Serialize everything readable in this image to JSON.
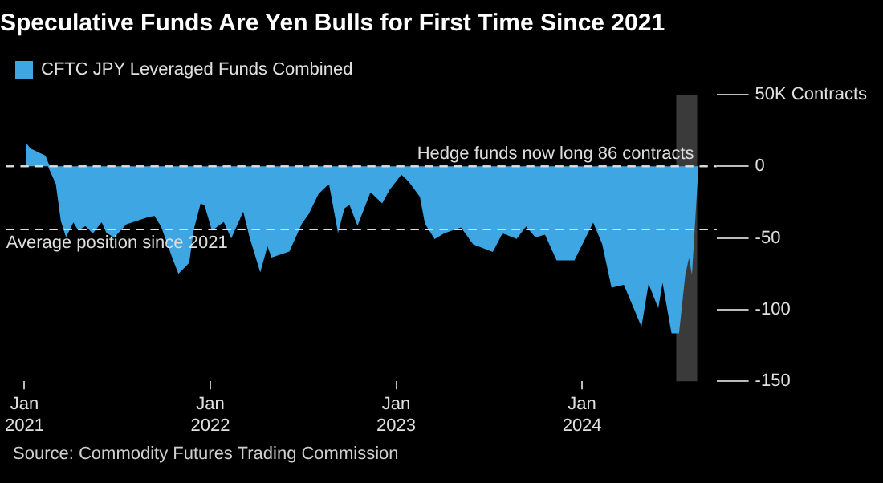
{
  "chart_data": {
    "type": "area",
    "title": "Speculative Funds Are Yen Bulls for First Time Since 2021",
    "x": [
      "2021-01-05",
      "2021-01-12",
      "2021-02-10",
      "2021-02-19",
      "2021-03-05",
      "2021-03-15",
      "2021-03-24",
      "2021-04-07",
      "2021-04-17",
      "2021-05-01",
      "2021-05-15",
      "2021-06-02",
      "2021-06-12",
      "2021-06-26",
      "2021-07-19",
      "2021-08-31",
      "2021-09-14",
      "2021-09-28",
      "2021-10-21",
      "2021-10-31",
      "2021-11-19",
      "2021-11-28",
      "2021-12-12",
      "2021-12-22",
      "2022-01-05",
      "2022-01-28",
      "2022-02-11",
      "2022-03-07",
      "2022-03-21",
      "2022-04-09",
      "2022-04-23",
      "2022-05-02",
      "2022-06-04",
      "2022-06-28",
      "2022-07-12",
      "2022-07-31",
      "2022-08-23",
      "2022-09-09",
      "2022-09-20",
      "2022-10-02",
      "2022-10-17",
      "2022-11-11",
      "2022-12-04",
      "2022-12-18",
      "2023-01-11",
      "2023-01-26",
      "2023-02-18",
      "2023-02-28",
      "2023-03-18",
      "2023-04-06",
      "2023-05-09",
      "2023-06-02",
      "2023-07-09",
      "2023-07-28",
      "2023-08-25",
      "2023-09-13",
      "2023-10-02",
      "2023-10-21",
      "2023-11-13",
      "2023-12-16",
      "2024-01-23",
      "2024-02-11",
      "2024-02-29",
      "2024-03-24",
      "2024-04-26",
      "2024-05-10",
      "2024-05-29",
      "2024-06-07",
      "2024-06-26",
      "2024-07-08",
      "2024-07-20",
      "2024-07-29",
      "2024-08-03",
      "2024-08-15"
    ],
    "series": [
      {
        "name": "CFTC JPY Leveraged Funds Combined",
        "color": "#3ea6e3",
        "values": [
          15,
          12,
          7,
          -1,
          -12,
          -38,
          -48,
          -38,
          -44,
          -41,
          -46,
          -38,
          -46,
          -49,
          -40,
          -35,
          -34,
          -42,
          -65,
          -74,
          -67,
          -44,
          -25,
          -27,
          -44,
          -38,
          -49,
          -30,
          -50,
          -72,
          -54,
          -63,
          -59,
          -40,
          -33,
          -19,
          -11,
          -44,
          -29,
          -26,
          -40,
          -17,
          -25,
          -16,
          -5,
          -10,
          -21,
          -40,
          -50,
          -46,
          -42,
          -54,
          -59,
          -46,
          -50,
          -41,
          -49,
          -47,
          -65,
          -65,
          -38,
          -54,
          -84,
          -82,
          -110,
          -80,
          -97,
          -78,
          -116,
          -116,
          -76,
          -61,
          -71,
          0.086
        ]
      }
    ],
    "xlim": [
      "2020-11-26",
      "2024-09-21"
    ],
    "xticks": [
      {
        "value": "2021-01-01",
        "label": "Jan 2021"
      },
      {
        "value": "2022-01-01",
        "label": "Jan 2022"
      },
      {
        "value": "2023-01-01",
        "label": "Jan 2023"
      },
      {
        "value": "2024-01-01",
        "label": "Jan 2024"
      }
    ],
    "ylim": [
      -150,
      50
    ],
    "yticks": [
      {
        "value": 50,
        "label": "50K Contracts"
      },
      0,
      -50,
      -100,
      -150
    ],
    "ref_lines": [
      {
        "axis": "y",
        "value": 0,
        "label": "Hedge funds now long 86 contracts",
        "color": "#dddddd",
        "line_style": "dashed"
      },
      {
        "axis": "y",
        "value": -44,
        "label": "Average position since 2021",
        "color": "#dddddd",
        "line_style": "dashed"
      }
    ],
    "bands": [
      {
        "axis": "x",
        "from": "2024-07-04",
        "to": "2024-08-14",
        "color": "#3a3a3a"
      }
    ],
    "legend": "top left",
    "grid": false,
    "annotations": [
      "Source: Commodity Futures Trading Commission"
    ]
  }
}
